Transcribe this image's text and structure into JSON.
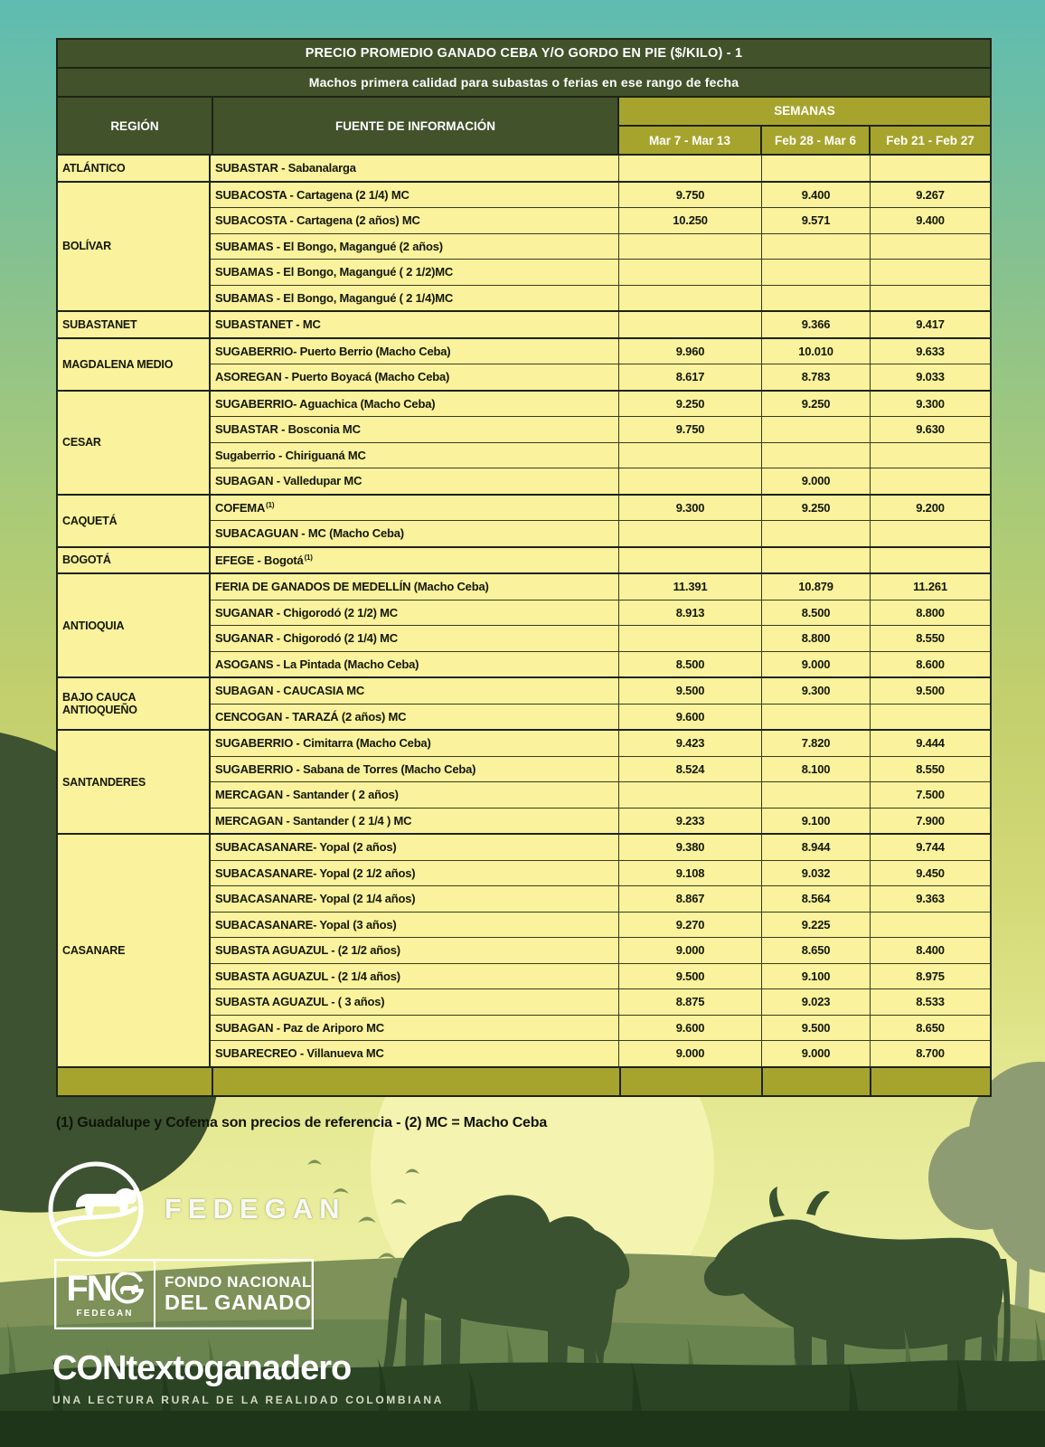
{
  "title": "PRECIO PROMEDIO GANADO CEBA Y/O GORDO EN PIE ($/KILO) - 1",
  "subtitle": "Machos primera calidad para subastas o ferias en ese rango de fecha",
  "table": {
    "col_region": "REGIÓN",
    "col_fuente": "FUENTE DE INFORMACIÓN",
    "col_semanas": "SEMANAS",
    "weeks": [
      "Mar 7 - Mar 13",
      "Feb 28 - Mar 6",
      "Feb 21 - Feb 27"
    ],
    "regions": [
      {
        "name": "ATLÁNTICO",
        "rows": [
          {
            "fuente": "SUBASTAR - Sabanalarga",
            "values": [
              "",
              "",
              ""
            ]
          }
        ]
      },
      {
        "name": "BOLÍVAR",
        "rows": [
          {
            "fuente": "SUBACOSTA - Cartagena (2 1/4) MC",
            "values": [
              "9.750",
              "9.400",
              "9.267"
            ]
          },
          {
            "fuente": "SUBACOSTA - Cartagena (2 años) MC",
            "values": [
              "10.250",
              "9.571",
              "9.400"
            ]
          },
          {
            "fuente": "SUBAMAS - El Bongo, Magangué (2 años)",
            "values": [
              "",
              "",
              ""
            ]
          },
          {
            "fuente": "SUBAMAS - El Bongo, Magangué ( 2 1/2)MC",
            "values": [
              "",
              "",
              ""
            ]
          },
          {
            "fuente": "SUBAMAS - El Bongo, Magangué ( 2 1/4)MC",
            "values": [
              "",
              "",
              ""
            ]
          }
        ]
      },
      {
        "name": "SUBASTANET",
        "rows": [
          {
            "fuente": "SUBASTANET - MC",
            "values": [
              "",
              "9.366",
              "9.417"
            ]
          }
        ]
      },
      {
        "name": "MAGDALENA MEDIO",
        "rows": [
          {
            "fuente": "SUGABERRIO- Puerto Berrio (Macho Ceba)",
            "values": [
              "9.960",
              "10.010",
              "9.633"
            ]
          },
          {
            "fuente": "ASOREGAN - Puerto Boyacá (Macho Ceba)",
            "values": [
              "8.617",
              "8.783",
              "9.033"
            ]
          }
        ]
      },
      {
        "name": "CESAR",
        "rows": [
          {
            "fuente": "SUGABERRIO- Aguachica  (Macho Ceba)",
            "values": [
              "9.250",
              "9.250",
              "9.300"
            ]
          },
          {
            "fuente": "SUBASTAR - Bosconia MC",
            "values": [
              "9.750",
              "",
              "9.630"
            ]
          },
          {
            "fuente": "Sugaberrio - Chiriguaná MC",
            "values": [
              "",
              "",
              ""
            ]
          },
          {
            "fuente": "SUBAGAN - Valledupar MC",
            "values": [
              "",
              "9.000",
              ""
            ]
          }
        ]
      },
      {
        "name": "CAQUETÁ",
        "rows": [
          {
            "fuente": "COFEMA",
            "sup": "(1)",
            "values": [
              "9.300",
              "9.250",
              "9.200"
            ]
          },
          {
            "fuente": "SUBACAGUAN - MC (Macho Ceba)",
            "values": [
              "",
              "",
              ""
            ]
          }
        ]
      },
      {
        "name": "BOGOTÁ",
        "rows": [
          {
            "fuente": "EFEGE - Bogotá",
            "sup": "(1)",
            "values": [
              "",
              "",
              ""
            ]
          }
        ]
      },
      {
        "name": "ANTIOQUIA",
        "rows": [
          {
            "fuente": "FERIA DE GANADOS DE MEDELLÍN (Macho Ceba)",
            "values": [
              "11.391",
              "10.879",
              "11.261"
            ]
          },
          {
            "fuente": "SUGANAR - Chigorodó (2 1/2) MC",
            "values": [
              "8.913",
              "8.500",
              "8.800"
            ]
          },
          {
            "fuente": "SUGANAR - Chigorodó (2 1/4) MC",
            "values": [
              "",
              "8.800",
              "8.550"
            ]
          },
          {
            "fuente": "ASOGANS - La Pintada (Macho Ceba)",
            "values": [
              "8.500",
              "9.000",
              "8.600"
            ]
          }
        ]
      },
      {
        "name": "BAJO CAUCA ANTIOQUEÑO",
        "rows": [
          {
            "fuente": "SUBAGAN - CAUCASIA MC",
            "values": [
              "9.500",
              "9.300",
              "9.500"
            ]
          },
          {
            "fuente": "CENCOGAN - TARAZÁ (2 años) MC",
            "values": [
              "9.600",
              "",
              ""
            ]
          }
        ]
      },
      {
        "name": "SANTANDERES",
        "rows": [
          {
            "fuente": "SUGABERRIO - Cimitarra (Macho Ceba)",
            "values": [
              "9.423",
              "7.820",
              "9.444"
            ]
          },
          {
            "fuente": "SUGABERRIO - Sabana de Torres (Macho Ceba)",
            "values": [
              "8.524",
              "8.100",
              "8.550"
            ]
          },
          {
            "fuente": "MERCAGAN - Santander ( 2 años)",
            "values": [
              "",
              "",
              "7.500"
            ]
          },
          {
            "fuente": "MERCAGAN - Santander ( 2 1/4 ) MC",
            "values": [
              "9.233",
              "9.100",
              "7.900"
            ]
          }
        ]
      },
      {
        "name": "CASANARE",
        "rows": [
          {
            "fuente": "SUBACASANARE- Yopal (2 años)",
            "values": [
              "9.380",
              "8.944",
              "9.744"
            ]
          },
          {
            "fuente": "SUBACASANARE- Yopal (2 1/2 años)",
            "values": [
              "9.108",
              "9.032",
              "9.450"
            ]
          },
          {
            "fuente": "SUBACASANARE- Yopal (2 1/4 años)",
            "values": [
              "8.867",
              "8.564",
              "9.363"
            ]
          },
          {
            "fuente": "SUBACASANARE- Yopal (3 años)",
            "values": [
              "9.270",
              "9.225",
              ""
            ]
          },
          {
            "fuente": "SUBASTA AGUAZUL - (2 1/2 años)",
            "values": [
              "9.000",
              "8.650",
              "8.400"
            ]
          },
          {
            "fuente": "SUBASTA AGUAZUL - (2 1/4 años)",
            "values": [
              "9.500",
              "9.100",
              "8.975"
            ]
          },
          {
            "fuente": "SUBASTA AGUAZUL - ( 3 años)",
            "values": [
              "8.875",
              "9.023",
              "8.533"
            ]
          },
          {
            "fuente": "SUBAGAN - Paz de Ariporo MC",
            "values": [
              "9.600",
              "9.500",
              "8.650"
            ]
          },
          {
            "fuente": "SUBARECREO - Villanueva MC",
            "values": [
              "9.000",
              "9.000",
              "8.700"
            ]
          }
        ]
      }
    ]
  },
  "footnote": "(1) Guadalupe y Cofema son precios de referencia  -  (2) MC = Macho Ceba",
  "branding": {
    "fedegan": "FEDEGAN",
    "fng": "FN",
    "fng_sub": "FEDEGAN",
    "fondo_line1": "FONDO NACIONAL",
    "fondo_line2": "DEL GANADO",
    "contexto": "CONtextoganadero",
    "contexto_sub": "UNA LECTURA RURAL DE LA REALIDAD COLOMBIANA"
  },
  "colors": {
    "c-teal": "#5fbcb2",
    "c-tgreen": "#42522b",
    "c-olive": "#a7a42e",
    "c-cell": "#faf29c",
    "c-line": "#1e2414",
    "c-ink": "#14180a",
    "c-sun": "#f5f3b0",
    "c-hill": "#7d9158",
    "c-foliage-dark": "#3c5230",
    "c-tree-muted": "#8d9c72",
    "c-ground": "#2b4424",
    "c-footer": "#203a1c"
  }
}
